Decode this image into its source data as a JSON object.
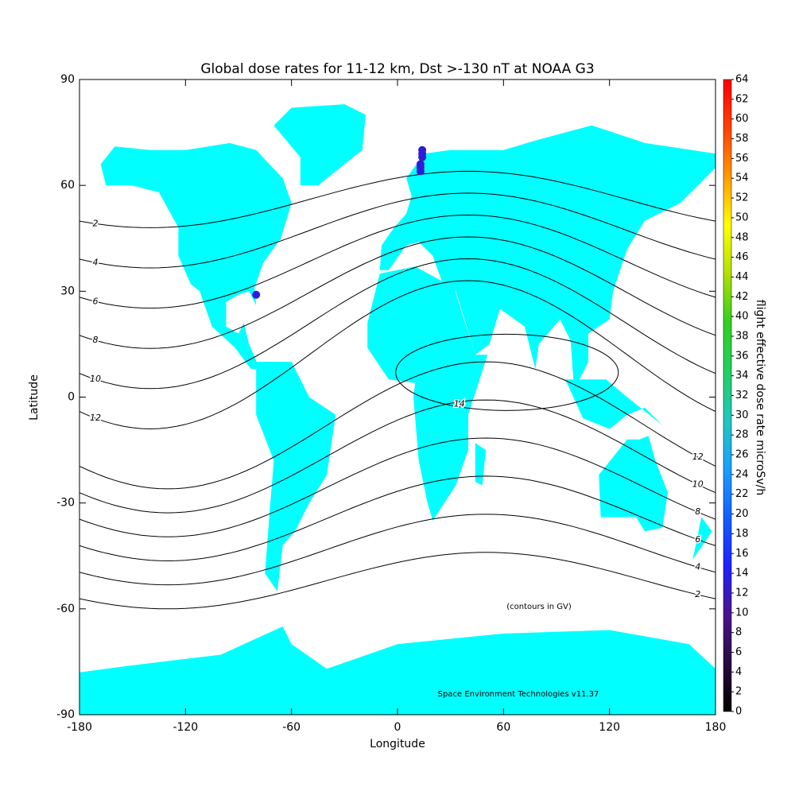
{
  "chart_data": {
    "type": "map",
    "title": "Global dose rates for 11-12 km, Dst >-130 nT at NOAA G3",
    "x_label": "Longitude",
    "y_label": "Latitude",
    "xlim": [
      -180,
      180
    ],
    "ylim": [
      -90,
      90
    ],
    "xticks": [
      -180,
      -120,
      -60,
      0,
      60,
      120,
      180
    ],
    "yticks": [
      -90,
      -60,
      -30,
      0,
      30,
      60,
      90
    ],
    "land_color": "#00ffff",
    "contour_levels": [
      2,
      4,
      6,
      8,
      10,
      12,
      14
    ],
    "contour_note": "(contours in GV)",
    "credit": "Space Environment Technologies v11.37",
    "flight_points": {
      "lon": [
        -80,
        13,
        13,
        13,
        14,
        14,
        14
      ],
      "lat": [
        29,
        64,
        65,
        66,
        68,
        69,
        70
      ],
      "values": [
        13,
        13,
        13,
        13,
        13,
        13,
        13
      ]
    },
    "colorbar": {
      "label": "flight effective dose rate microSv/h",
      "lim": [
        0,
        64
      ],
      "ticks": [
        0,
        2,
        4,
        6,
        8,
        10,
        12,
        14,
        16,
        18,
        20,
        22,
        24,
        26,
        28,
        30,
        32,
        34,
        36,
        38,
        40,
        42,
        44,
        46,
        48,
        50,
        52,
        54,
        56,
        58,
        60,
        62,
        64
      ],
      "colors": [
        "#000000",
        "#2a0a40",
        "#4a1490",
        "#2020ff",
        "#1060ff",
        "#1aa0ff",
        "#20c8c0",
        "#20d060",
        "#30d020",
        "#b0e000",
        "#ffff00",
        "#ff9a00",
        "#ff4000",
        "#ff0000"
      ]
    }
  }
}
